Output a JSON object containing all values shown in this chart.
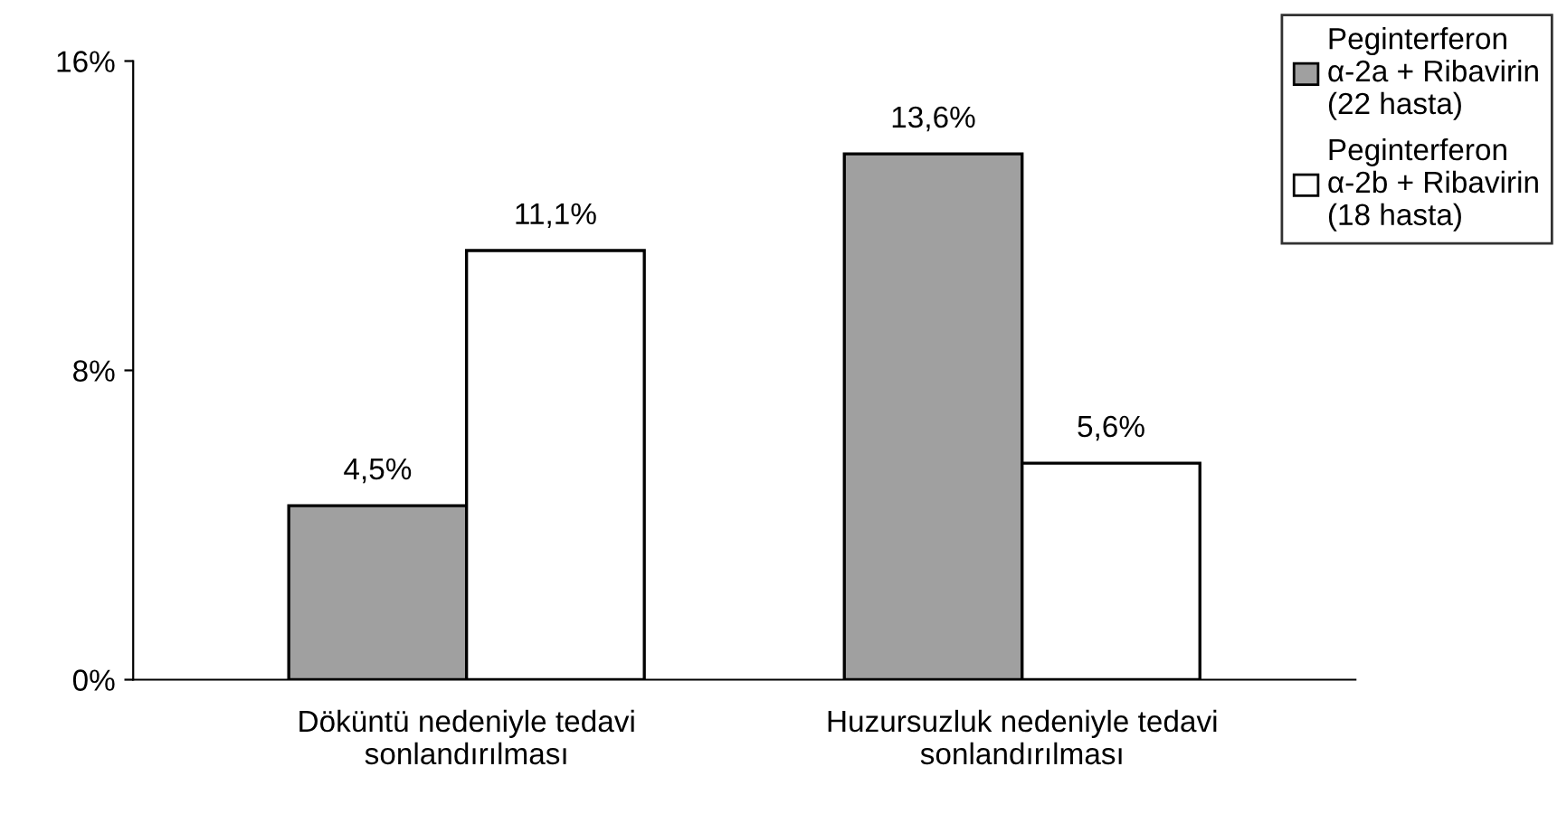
{
  "chart_data": {
    "type": "bar",
    "categories": [
      "Döküntü nedeniyle tedavi\nsonlandırılması",
      "Huzursuzluk nedeniyle tedavi\nsonlandırılması"
    ],
    "series": [
      {
        "name": "Peginterferon\nα-2a + Ribavirin\n(22 hasta)",
        "color": "#a0a0a0",
        "values": [
          4.5,
          13.6
        ],
        "value_labels": [
          "4,5%",
          "13,6%"
        ]
      },
      {
        "name": "Peginterferon\nα-2b + Ribavirin\n(18 hasta)",
        "color": "#ffffff",
        "values": [
          11.1,
          5.6
        ],
        "value_labels": [
          "11,1%",
          "5,6%"
        ]
      }
    ],
    "ylim": [
      0,
      16
    ],
    "yticks": [
      {
        "value": 0,
        "label": "0%"
      },
      {
        "value": 8,
        "label": "8%"
      },
      {
        "value": 16,
        "label": "16%"
      }
    ],
    "grid": false,
    "legend": "top right"
  }
}
